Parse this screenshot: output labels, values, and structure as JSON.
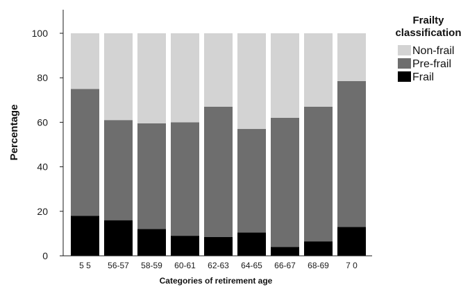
{
  "chart_data": {
    "type": "bar",
    "stacked": true,
    "xlabel": "Categories of retirement age",
    "ylabel": "Percentage",
    "ylim": [
      0,
      100
    ],
    "yticks": [
      0,
      20,
      40,
      60,
      80,
      100
    ],
    "grid": false,
    "legend_placement": "top-right",
    "legend_title_lines": [
      "Frailty",
      "classification"
    ],
    "categories": [
      "5 5",
      "56-57",
      "58-59",
      "60-61",
      "62-63",
      "64-65",
      "66-67",
      "68-69",
      "7 0"
    ],
    "series": [
      {
        "name": "Frail",
        "color": "#000000",
        "values": [
          18,
          16,
          12,
          9,
          8.5,
          10.5,
          4,
          6.5,
          13
        ]
      },
      {
        "name": "Pre-frail",
        "color": "#6e6e6e",
        "values": [
          57,
          45,
          47.5,
          51,
          58.5,
          46.5,
          58,
          60.5,
          65.5
        ]
      },
      {
        "name": "Non-frail",
        "color": "#d3d3d3",
        "values": [
          25,
          39,
          40.5,
          40,
          33,
          43,
          38,
          33,
          21.5
        ]
      }
    ],
    "legend_order": [
      "Non-frail",
      "Pre-frail",
      "Frail"
    ]
  }
}
